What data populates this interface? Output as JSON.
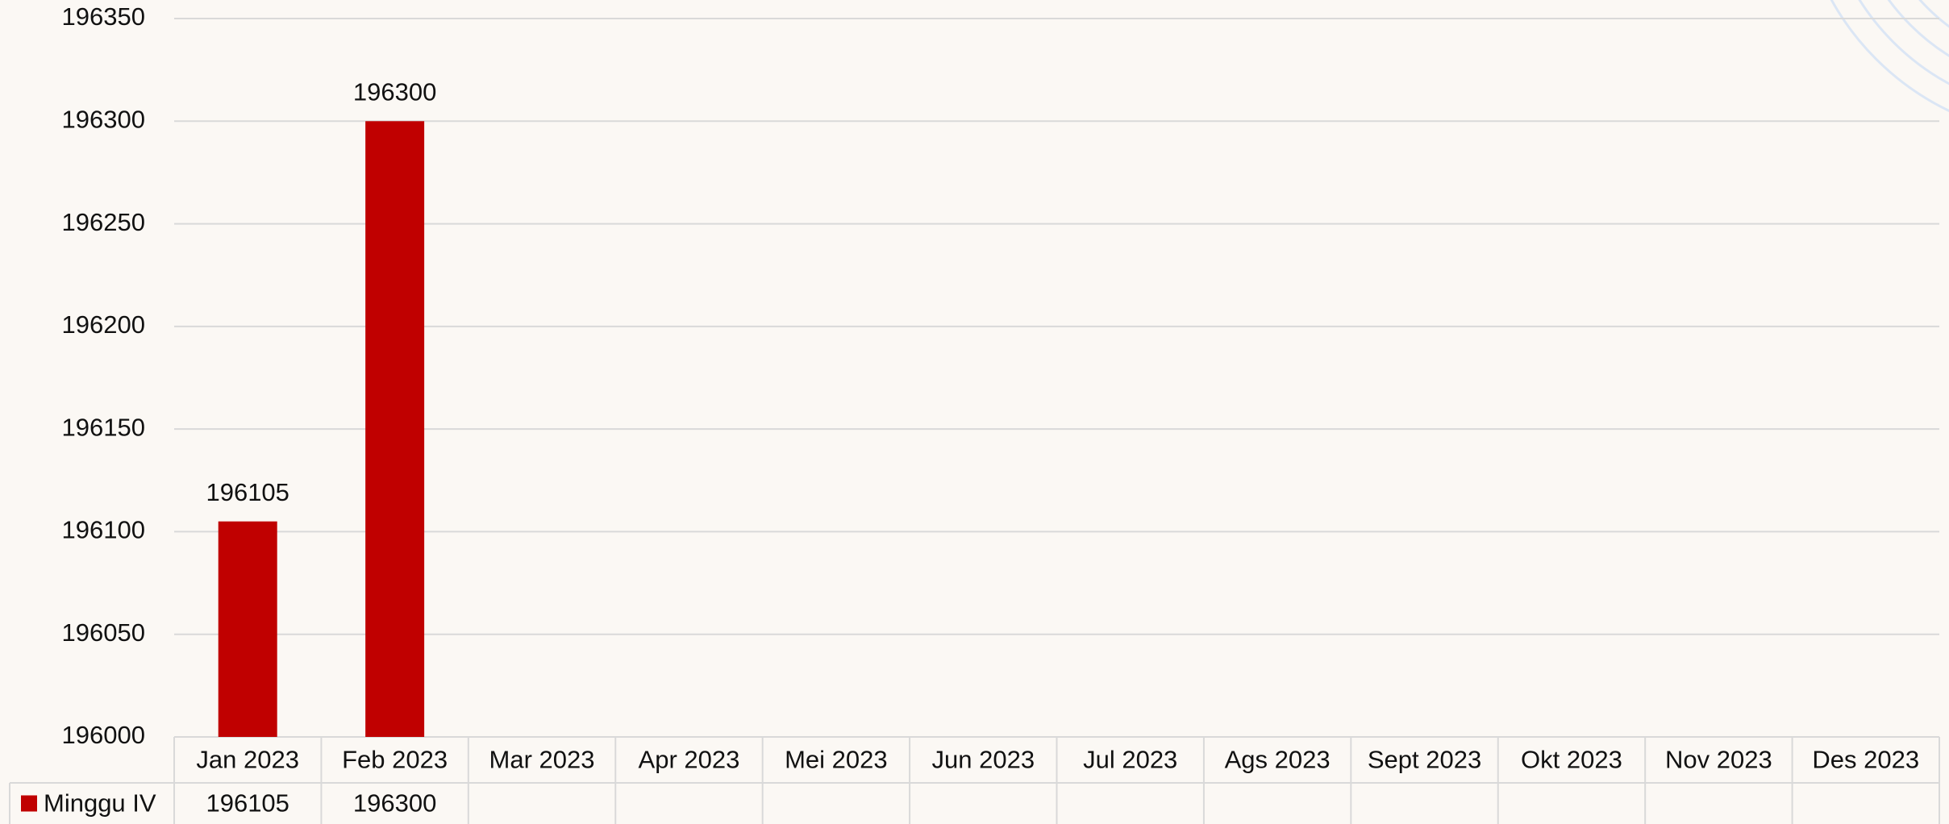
{
  "chart_data": {
    "type": "bar",
    "categories": [
      "Jan 2023",
      "Feb 2023",
      "Mar 2023",
      "Apr 2023",
      "Mei 2023",
      "Jun 2023",
      "Jul 2023",
      "Ags 2023",
      "Sept 2023",
      "Okt 2023",
      "Nov 2023",
      "Des 2023"
    ],
    "series": [
      {
        "name": "Minggu IV",
        "color": "#c00000",
        "values": [
          196105,
          196300,
          null,
          null,
          null,
          null,
          null,
          null,
          null,
          null,
          null,
          null
        ]
      }
    ],
    "ylim": [
      196000,
      196350
    ],
    "yticks": [
      196000,
      196050,
      196100,
      196150,
      196200,
      196250,
      196300,
      196350
    ],
    "grid": true,
    "data_table": true
  }
}
